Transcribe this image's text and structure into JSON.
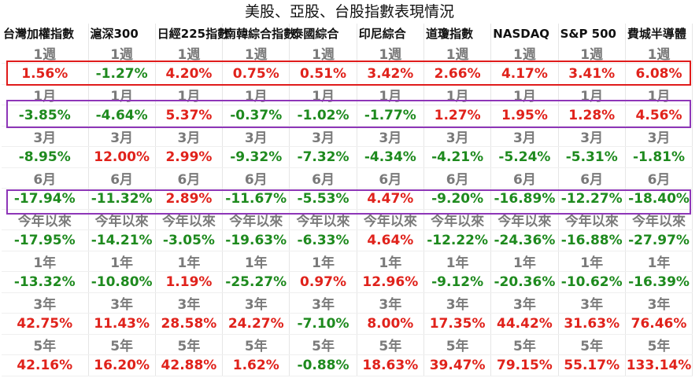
{
  "title": "美股、亞股、台股指數表現情況",
  "columns": [
    "台灣加權指數",
    "滬深300",
    "日經225指數",
    "南韓綜合指數",
    "泰國綜合",
    "印尼綜合",
    "道瓊指數",
    "NASDAQ",
    "S&P 500",
    "費城半導體"
  ],
  "periods": [
    {
      "label": "1週",
      "values": [
        "1.56%",
        "-1.27%",
        "4.20%",
        "0.75%",
        "0.51%",
        "3.42%",
        "2.66%",
        "4.17%",
        "3.41%",
        "6.08%"
      ]
    },
    {
      "label": "1月",
      "values": [
        "-3.85%",
        "-4.64%",
        "5.37%",
        "-0.37%",
        "-1.02%",
        "-1.77%",
        "1.27%",
        "1.95%",
        "1.28%",
        "4.56%"
      ]
    },
    {
      "label": "3月",
      "values": [
        "-8.95%",
        "12.00%",
        "2.99%",
        "-9.32%",
        "-7.32%",
        "-4.34%",
        "-4.21%",
        "-5.24%",
        "-5.31%",
        "-1.81%"
      ]
    },
    {
      "label": "6月",
      "values": [
        "-17.94%",
        "-11.32%",
        "2.89%",
        "-11.67%",
        "-5.53%",
        "4.47%",
        "-9.20%",
        "-16.89%",
        "-12.27%",
        "-18.40%"
      ]
    },
    {
      "label": "今年以來",
      "values": [
        "-17.95%",
        "-14.21%",
        "-3.05%",
        "-19.63%",
        "-6.33%",
        "4.64%",
        "-12.22%",
        "-24.36%",
        "-16.88%",
        "-27.97%"
      ]
    },
    {
      "label": "1年",
      "values": [
        "-13.32%",
        "-10.80%",
        "1.19%",
        "-25.27%",
        "0.97%",
        "12.96%",
        "-9.12%",
        "-20.36%",
        "-10.62%",
        "-16.39%"
      ]
    },
    {
      "label": "3年",
      "values": [
        "42.75%",
        "11.43%",
        "28.58%",
        "24.27%",
        "-7.10%",
        "8.00%",
        "17.35%",
        "44.42%",
        "31.63%",
        "76.46%"
      ]
    },
    {
      "label": "5年",
      "values": [
        "42.16%",
        "16.20%",
        "42.88%",
        "1.62%",
        "-0.88%",
        "18.63%",
        "39.47%",
        "79.15%",
        "55.17%",
        "133.14%"
      ]
    }
  ],
  "colors": {
    "positive": "#e0221b",
    "negative": "#1e8a1e",
    "highlight_red": "#e01b1b",
    "highlight_purple": "#8e36b8"
  },
  "highlighted_rows": [
    {
      "period": "1週",
      "color": "red"
    },
    {
      "period": "1月",
      "color": "purple"
    },
    {
      "period": "6月",
      "color": "purple"
    }
  ]
}
